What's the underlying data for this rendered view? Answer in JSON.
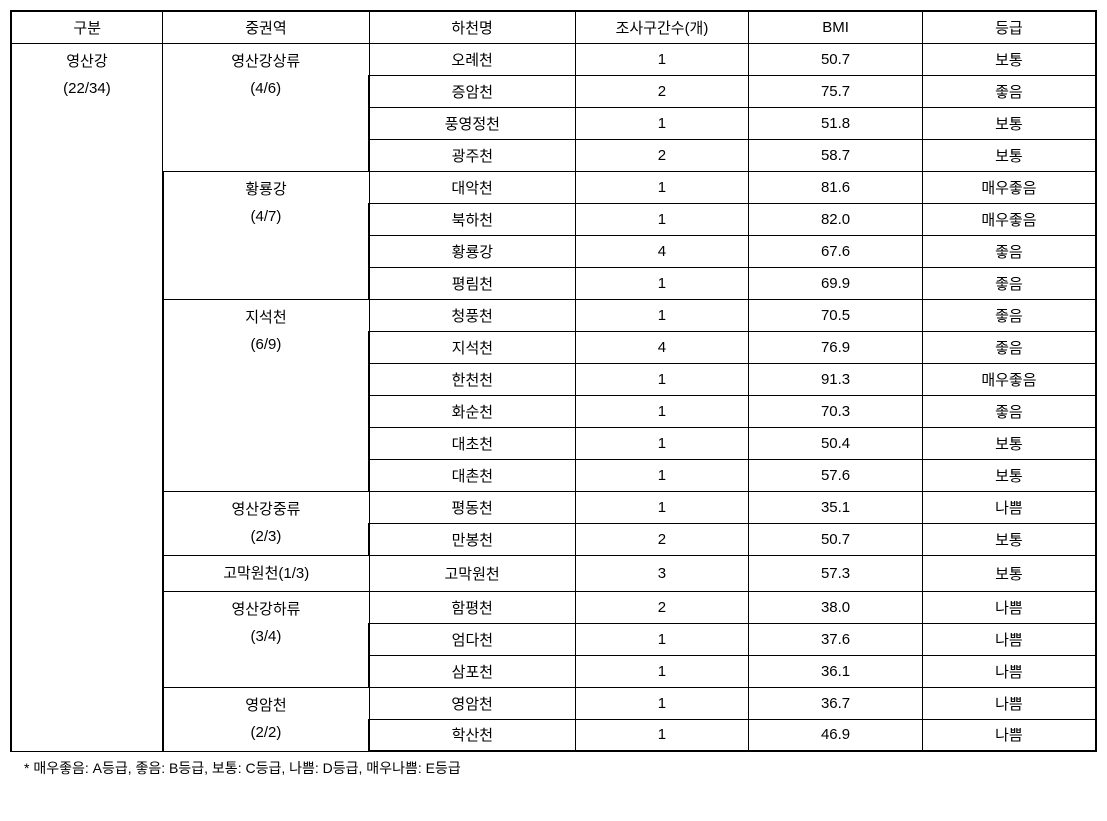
{
  "table": {
    "columns": [
      "구분",
      "중권역",
      "하천명",
      "조사구간수(개)",
      "BMI",
      "등급"
    ],
    "col_widths_pct": [
      14,
      19,
      19,
      16,
      16,
      16
    ],
    "col1": {
      "line1": "영산강",
      "line2": "(22/34)",
      "rowspan": 22
    },
    "groups": [
      {
        "line1": "영산강상류",
        "line2": "(4/6)",
        "rowspan": 4,
        "rows": [
          {
            "river": "오례천",
            "count": "1",
            "bmi": "50.7",
            "grade": "보통"
          },
          {
            "river": "증암천",
            "count": "2",
            "bmi": "75.7",
            "grade": "좋음"
          },
          {
            "river": "풍영정천",
            "count": "1",
            "bmi": "51.8",
            "grade": "보통"
          },
          {
            "river": "광주천",
            "count": "2",
            "bmi": "58.7",
            "grade": "보통"
          }
        ]
      },
      {
        "line1": "황룡강",
        "line2": "(4/7)",
        "rowspan": 4,
        "rows": [
          {
            "river": "대악천",
            "count": "1",
            "bmi": "81.6",
            "grade": "매우좋음"
          },
          {
            "river": "북하천",
            "count": "1",
            "bmi": "82.0",
            "grade": "매우좋음"
          },
          {
            "river": "황룡강",
            "count": "4",
            "bmi": "67.6",
            "grade": "좋음"
          },
          {
            "river": "평림천",
            "count": "1",
            "bmi": "69.9",
            "grade": "좋음"
          }
        ]
      },
      {
        "line1": "지석천",
        "line2": "(6/9)",
        "rowspan": 6,
        "rows": [
          {
            "river": "청풍천",
            "count": "1",
            "bmi": "70.5",
            "grade": "좋음"
          },
          {
            "river": "지석천",
            "count": "4",
            "bmi": "76.9",
            "grade": "좋음"
          },
          {
            "river": "한천천",
            "count": "1",
            "bmi": "91.3",
            "grade": "매우좋음"
          },
          {
            "river": "화순천",
            "count": "1",
            "bmi": "70.3",
            "grade": "좋음"
          },
          {
            "river": "대초천",
            "count": "1",
            "bmi": "50.4",
            "grade": "보통"
          },
          {
            "river": "대촌천",
            "count": "1",
            "bmi": "57.6",
            "grade": "보통"
          }
        ]
      },
      {
        "line1": "영산강중류",
        "line2": "(2/3)",
        "rowspan": 2,
        "rows": [
          {
            "river": "평동천",
            "count": "1",
            "bmi": "35.1",
            "grade": "나쁨"
          },
          {
            "river": "만봉천",
            "count": "2",
            "bmi": "50.7",
            "grade": "보통"
          }
        ]
      },
      {
        "line1": "고막원천(1/3)",
        "line2": "",
        "rowspan": 1,
        "rows": [
          {
            "river": "고막원천",
            "count": "3",
            "bmi": "57.3",
            "grade": "보통"
          }
        ]
      },
      {
        "line1": "영산강하류",
        "line2": "(3/4)",
        "rowspan": 3,
        "rows": [
          {
            "river": "함평천",
            "count": "2",
            "bmi": "38.0",
            "grade": "나쁨"
          },
          {
            "river": "엄다천",
            "count": "1",
            "bmi": "37.6",
            "grade": "나쁨"
          },
          {
            "river": "삼포천",
            "count": "1",
            "bmi": "36.1",
            "grade": "나쁨"
          }
        ]
      },
      {
        "line1": "영암천",
        "line2": "(2/2)",
        "rowspan": 2,
        "rows": [
          {
            "river": "영암천",
            "count": "1",
            "bmi": "36.7",
            "grade": "나쁨"
          },
          {
            "river": "학산천",
            "count": "1",
            "bmi": "46.9",
            "grade": "나쁨"
          }
        ]
      }
    ]
  },
  "footnote": "* 매우좋음: A등급, 좋음: B등급, 보통: C등급, 나쁨: D등급, 매우나쁨: E등급"
}
